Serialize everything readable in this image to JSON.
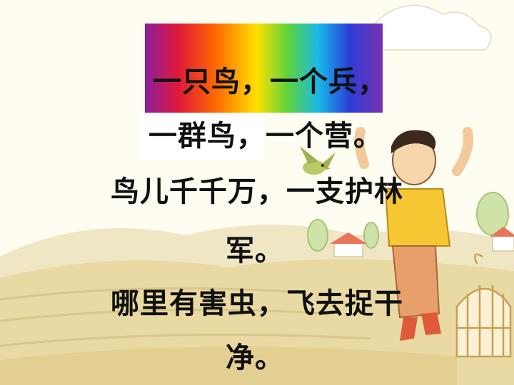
{
  "poem": {
    "line1": "一只鸟，一个兵，",
    "line2": "一群鸟，一个营。",
    "line3": "鸟儿千千万，一支护林",
    "line4": "军。",
    "line5": "哪里有害虫，飞去捉干",
    "line6": "净。"
  },
  "colors": {
    "text": "#111111",
    "sky": "#fffdf0",
    "field": "#e8d9a0",
    "shirt": "#f6c733",
    "pants": "#e8a06a"
  },
  "illustration": {
    "boy": "boy-cheering-figure",
    "bird": "flying-bird-icon",
    "cage": "birdcage-icon",
    "house": "farmhouse-icon"
  }
}
